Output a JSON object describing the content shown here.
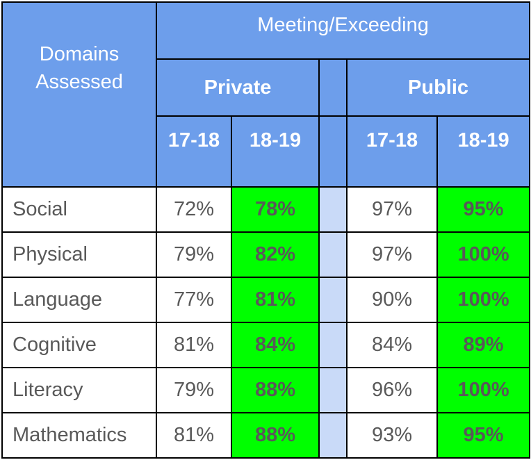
{
  "chart_data": {
    "type": "table",
    "header": {
      "domains": "Domains Assessed",
      "meeting": "Meeting/Exceeding",
      "private": "Private",
      "public": "Public",
      "years": [
        "17-18",
        "18-19",
        "17-18",
        "18-19"
      ]
    },
    "rows": [
      {
        "domain": "Social",
        "values": [
          "72%",
          "78%",
          "97%",
          "95%"
        ]
      },
      {
        "domain": "Physical",
        "values": [
          "79%",
          "82%",
          "97%",
          "100%"
        ]
      },
      {
        "domain": "Language",
        "values": [
          "77%",
          "81%",
          "90%",
          "100%"
        ]
      },
      {
        "domain": "Cognitive",
        "values": [
          "81%",
          "84%",
          "84%",
          "89%"
        ]
      },
      {
        "domain": "Literacy",
        "values": [
          "79%",
          "88%",
          "96%",
          "100%"
        ]
      },
      {
        "domain": "Mathematics",
        "values": [
          "81%",
          "88%",
          "93%",
          "95%"
        ]
      }
    ]
  },
  "colors": {
    "header_bg": "#6d9eeb",
    "header_text": "#ffffff",
    "highlight_bg": "#00ff00",
    "spacer_bg": "#c9daf8",
    "body_text": "#595959",
    "border": "#000000"
  }
}
